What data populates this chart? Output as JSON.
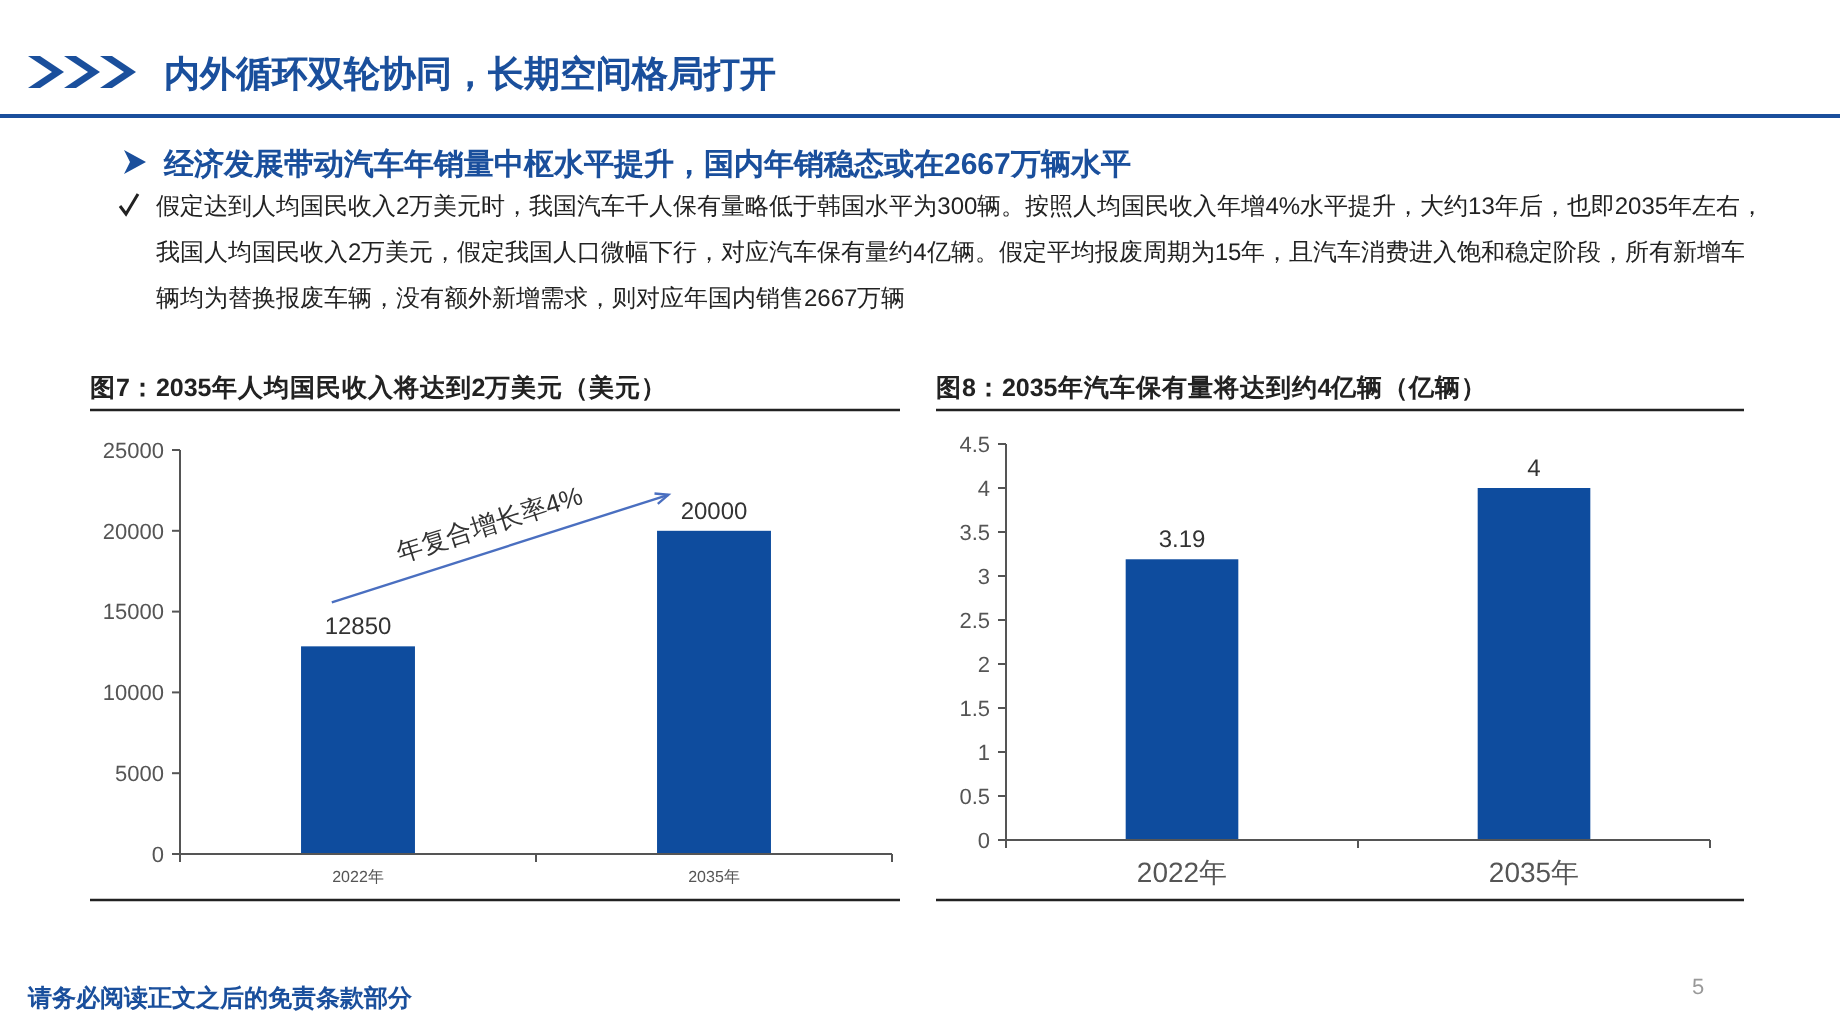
{
  "chart_data": [
    {
      "type": "other",
      "title": "内外循环双轮协同，长期空间格局打开",
      "subtitle": "经济发展带动汽车年销量中枢水平提升，国内年销稳态或在2667万辆水平",
      "annotations": [
        "假定达到人均国民收入2万美元时，我国汽车千人保有量略低于韩国水平为300辆。按照人均国民收入年增4%水平提升，大约13年后，也即2035年左右，我国人均国民收入2万美元，假定我国人口微幅下行，对应汽车保有量约4亿辆。假定平均报废周期为15年，且汽车消费进入饱和稳定阶段，所有新增车辆均为替换报废车辆，没有额外新增需求，则对应年国内销售2667万辆",
        "请务必阅读正文之后的免责条款部分",
        "5"
      ]
    },
    {
      "type": "bar",
      "title": "图7：2035年人均国民收入将达到2万美元（美元）",
      "categories": [
        "2022年",
        "2035年"
      ],
      "values": [
        12850,
        20000
      ],
      "color": "#0e4c9e",
      "ylim": [
        0,
        25000
      ],
      "yticks": [
        0,
        5000,
        10000,
        15000,
        20000,
        25000
      ],
      "data_labels": true,
      "annotations": [
        "年复合增长率4%"
      ]
    },
    {
      "type": "bar",
      "title": "图8：2035年汽车保有量将达到约4亿辆（亿辆）",
      "categories": [
        "2022年",
        "2035年"
      ],
      "values": [
        3.19,
        4
      ],
      "color": "#0e4c9e",
      "ylim": [
        0,
        4.5
      ],
      "yticks": [
        0,
        0.5,
        1,
        1.5,
        2,
        2.5,
        3,
        3.5,
        4,
        4.5
      ],
      "data_labels": true
    }
  ]
}
